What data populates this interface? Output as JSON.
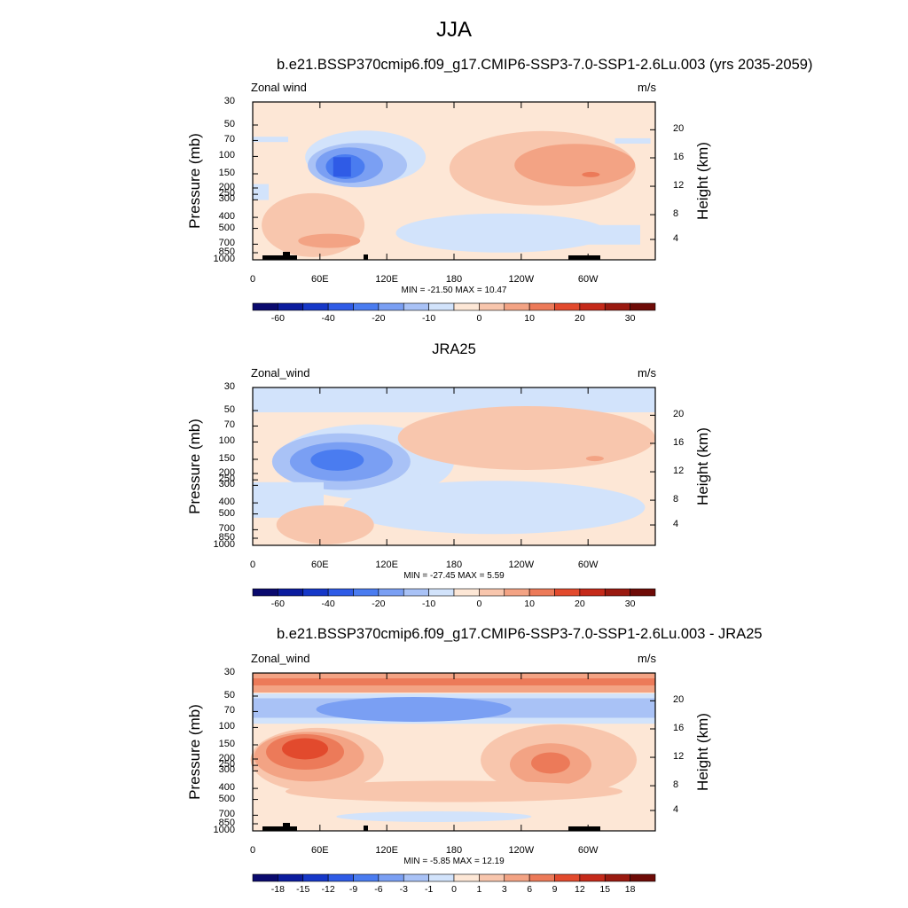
{
  "figure": {
    "title": "JJA"
  },
  "colorbar_colors": [
    "#0a0a6e",
    "#0b1c9e",
    "#1638c8",
    "#2f5be6",
    "#4a7cf0",
    "#7a9ff3",
    "#a9c2f6",
    "#d2e3fb",
    "#fde7d6",
    "#f8c6ad",
    "#f3a384",
    "#ec7a59",
    "#e24a2d",
    "#c52a1a",
    "#9a1a10",
    "#6e0b07"
  ],
  "charts": [
    {
      "title": "b.e21.BSSP370cmip6.f09_g17.CMIP6-SSP3-7.0-SSP1-2.6Lu.003 (yrs 2035-2059)",
      "variable": "Zonal wind",
      "units": "m/s",
      "left_axis_label": "Pressure (mb)",
      "right_axis_label": "Height (km)",
      "pressure_ticks": [
        "30",
        "50",
        "70",
        "100",
        "150",
        "200",
        "250",
        "300",
        "400",
        "500",
        "700",
        "850",
        "1000"
      ],
      "height_ticks": [
        "20",
        "16",
        "12",
        "8",
        "4"
      ],
      "lon_ticks": [
        "0",
        "60E",
        "120E",
        "180",
        "120W",
        "60W"
      ],
      "min_max": "MIN = -21.50  MAX =  10.47",
      "colorbar_ticks": [
        "-60",
        "-40",
        "-20",
        "-10",
        "0",
        "10",
        "20",
        "30"
      ],
      "chart_data": {
        "type": "heatmap",
        "x": "longitude",
        "y": "pressure (mb)",
        "min": -21.5,
        "max": 10.47,
        "colorbar_levels": [
          -70,
          -60,
          -50,
          -40,
          -30,
          -20,
          -15,
          -10,
          -5,
          0,
          5,
          10,
          15,
          20,
          25,
          30
        ]
      }
    },
    {
      "title": "JRA25",
      "variable": "Zonal_wind",
      "units": "m/s",
      "left_axis_label": "Pressure (mb)",
      "right_axis_label": "Height (km)",
      "pressure_ticks": [
        "30",
        "50",
        "70",
        "100",
        "150",
        "200",
        "250",
        "300",
        "400",
        "500",
        "700",
        "850",
        "1000"
      ],
      "height_ticks": [
        "20",
        "16",
        "12",
        "8",
        "4"
      ],
      "lon_ticks": [
        "0",
        "60E",
        "120E",
        "180",
        "120W",
        "60W"
      ],
      "min_max": "MIN = -27.45  MAX =   5.59",
      "colorbar_ticks": [
        "-60",
        "-40",
        "-20",
        "-10",
        "0",
        "10",
        "20",
        "30"
      ],
      "chart_data": {
        "type": "heatmap",
        "x": "longitude",
        "y": "pressure (mb)",
        "min": -27.45,
        "max": 5.59,
        "colorbar_levels": [
          -70,
          -60,
          -50,
          -40,
          -30,
          -20,
          -15,
          -10,
          -5,
          0,
          5,
          10,
          15,
          20,
          25,
          30
        ]
      }
    },
    {
      "title": "b.e21.BSSP370cmip6.f09_g17.CMIP6-SSP3-7.0-SSP1-2.6Lu.003 - JRA25",
      "variable": "Zonal_wind",
      "units": "m/s",
      "left_axis_label": "Pressure (mb)",
      "right_axis_label": "Height (km)",
      "pressure_ticks": [
        "30",
        "50",
        "70",
        "100",
        "150",
        "200",
        "250",
        "300",
        "400",
        "500",
        "700",
        "850",
        "1000"
      ],
      "height_ticks": [
        "20",
        "16",
        "12",
        "8",
        "4"
      ],
      "lon_ticks": [
        "0",
        "60E",
        "120E",
        "180",
        "120W",
        "60W"
      ],
      "min_max": "MIN =  -5.85  MAX =  12.19",
      "colorbar_ticks": [
        "-18",
        "-15",
        "-12",
        "-9",
        "-6",
        "-3",
        "-1",
        "0",
        "1",
        "3",
        "6",
        "9",
        "12",
        "15",
        "18"
      ],
      "chart_data": {
        "type": "heatmap",
        "x": "longitude",
        "y": "pressure (mb)",
        "min": -5.85,
        "max": 12.19,
        "colorbar_levels": [
          -21,
          -18,
          -15,
          -12,
          -9,
          -6,
          -3,
          -1,
          0,
          1,
          3,
          6,
          9,
          12,
          15,
          18
        ]
      }
    }
  ]
}
